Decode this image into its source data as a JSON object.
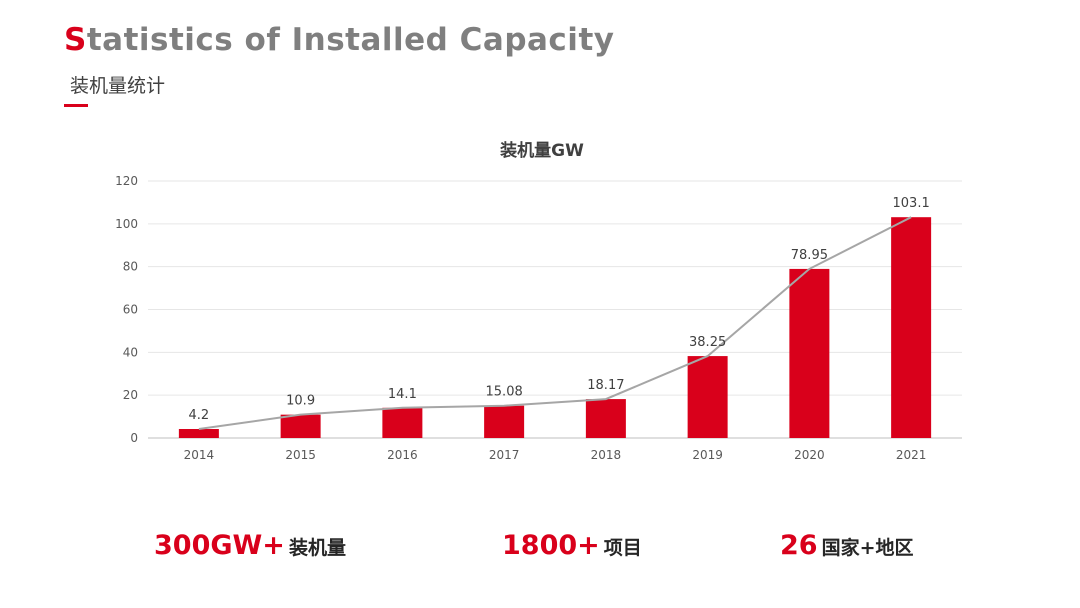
{
  "header": {
    "title_first": "S",
    "title_rest": "tatistics of Installed Capacity",
    "subtitle": "装机量统计",
    "accent_color": "#d9001b"
  },
  "chart_data": {
    "type": "bar",
    "title": "装机量GW",
    "categories": [
      "2014",
      "2015",
      "2016",
      "2017",
      "2018",
      "2019",
      "2020",
      "2021"
    ],
    "values": [
      4.2,
      10.9,
      14.1,
      15.08,
      18.17,
      38.25,
      78.95,
      103.1
    ],
    "value_labels": [
      "4.2",
      "10.9",
      "14.1",
      "15.08",
      "18.17",
      "38.25",
      "78.95",
      "103.1"
    ],
    "ylim": [
      0,
      120
    ],
    "yticks": [
      "0",
      "20",
      "40",
      "60",
      "80",
      "100",
      "120"
    ],
    "grid": true,
    "legend": "none",
    "bar_color": "#d9001b",
    "line_color": "#a6a6a6"
  },
  "stats": [
    {
      "number": "300GW+",
      "label": "装机量"
    },
    {
      "number": "1800+",
      "label": "项目"
    },
    {
      "number": "26",
      "label": "国家+地区"
    }
  ]
}
